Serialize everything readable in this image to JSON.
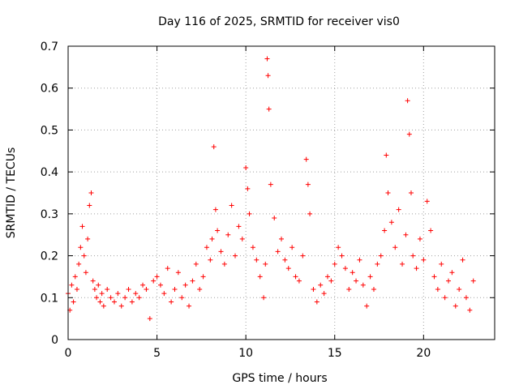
{
  "chart_data": {
    "type": "scatter",
    "title": "Day 116 of 2025, SRMTID for receiver vis0",
    "xlabel": "GPS time / hours",
    "ylabel": "SRMTID / TECUs",
    "xlim": [
      0,
      24
    ],
    "ylim": [
      0,
      0.7
    ],
    "x_ticks": [
      0,
      5,
      10,
      15,
      20
    ],
    "y_ticks": [
      0,
      0.1,
      0.2,
      0.3,
      0.4,
      0.5,
      0.6,
      0.7
    ],
    "x_tick_labels": [
      "0",
      "5",
      "10",
      "15",
      "20"
    ],
    "y_tick_labels": [
      "0",
      "0.1",
      "0.2",
      "0.3",
      "0.4",
      "0.5",
      "0.6",
      "0.7"
    ],
    "grid": true,
    "marker": "plus",
    "color": "#ff0000",
    "series": [
      {
        "name": "vis0",
        "x": [
          0.0,
          0.1,
          0.2,
          0.3,
          0.4,
          0.5,
          0.6,
          0.7,
          0.8,
          0.9,
          1.0,
          1.1,
          1.2,
          1.3,
          1.4,
          1.5,
          1.6,
          1.7,
          1.8,
          1.9,
          2.0,
          2.2,
          2.4,
          2.6,
          2.8,
          3.0,
          3.2,
          3.4,
          3.6,
          3.8,
          4.0,
          4.2,
          4.4,
          4.6,
          4.8,
          5.0,
          5.2,
          5.4,
          5.6,
          5.8,
          6.0,
          6.2,
          6.4,
          6.6,
          6.8,
          7.0,
          7.2,
          7.4,
          7.6,
          7.8,
          8.0,
          8.1,
          8.2,
          8.3,
          8.4,
          8.6,
          8.8,
          9.0,
          9.2,
          9.4,
          9.6,
          9.8,
          10.0,
          10.1,
          10.2,
          10.4,
          10.6,
          10.8,
          11.0,
          11.1,
          11.2,
          11.25,
          11.3,
          11.4,
          11.6,
          11.8,
          12.0,
          12.2,
          12.4,
          12.6,
          12.8,
          13.0,
          13.2,
          13.4,
          13.5,
          13.6,
          13.8,
          14.0,
          14.2,
          14.4,
          14.6,
          14.8,
          15.0,
          15.2,
          15.4,
          15.6,
          15.8,
          16.0,
          16.2,
          16.4,
          16.6,
          16.8,
          17.0,
          17.2,
          17.4,
          17.6,
          17.8,
          17.9,
          18.0,
          18.2,
          18.4,
          18.6,
          18.8,
          19.0,
          19.1,
          19.2,
          19.3,
          19.4,
          19.6,
          19.8,
          20.0,
          20.2,
          20.4,
          20.6,
          20.8,
          21.0,
          21.2,
          21.4,
          21.6,
          21.8,
          22.0,
          22.2,
          22.4,
          22.6,
          22.8
        ],
        "y": [
          0.11,
          0.07,
          0.13,
          0.09,
          0.15,
          0.12,
          0.18,
          0.22,
          0.27,
          0.2,
          0.16,
          0.24,
          0.32,
          0.35,
          0.14,
          0.12,
          0.1,
          0.13,
          0.09,
          0.11,
          0.08,
          0.12,
          0.1,
          0.09,
          0.11,
          0.08,
          0.1,
          0.12,
          0.09,
          0.11,
          0.1,
          0.13,
          0.12,
          0.05,
          0.14,
          0.15,
          0.13,
          0.11,
          0.17,
          0.09,
          0.12,
          0.16,
          0.1,
          0.13,
          0.08,
          0.14,
          0.18,
          0.12,
          0.15,
          0.22,
          0.19,
          0.24,
          0.46,
          0.31,
          0.26,
          0.21,
          0.18,
          0.25,
          0.32,
          0.2,
          0.27,
          0.24,
          0.41,
          0.36,
          0.3,
          0.22,
          0.19,
          0.15,
          0.1,
          0.18,
          0.67,
          0.63,
          0.55,
          0.37,
          0.29,
          0.21,
          0.24,
          0.19,
          0.17,
          0.22,
          0.15,
          0.14,
          0.2,
          0.43,
          0.37,
          0.3,
          0.12,
          0.09,
          0.13,
          0.11,
          0.15,
          0.14,
          0.18,
          0.22,
          0.2,
          0.17,
          0.12,
          0.16,
          0.14,
          0.19,
          0.13,
          0.08,
          0.15,
          0.12,
          0.18,
          0.2,
          0.26,
          0.44,
          0.35,
          0.28,
          0.22,
          0.31,
          0.18,
          0.25,
          0.57,
          0.49,
          0.35,
          0.2,
          0.17,
          0.24,
          0.19,
          0.33,
          0.26,
          0.15,
          0.12,
          0.18,
          0.1,
          0.14,
          0.16,
          0.08,
          0.12,
          0.19,
          0.1,
          0.07,
          0.14
        ]
      }
    ]
  }
}
